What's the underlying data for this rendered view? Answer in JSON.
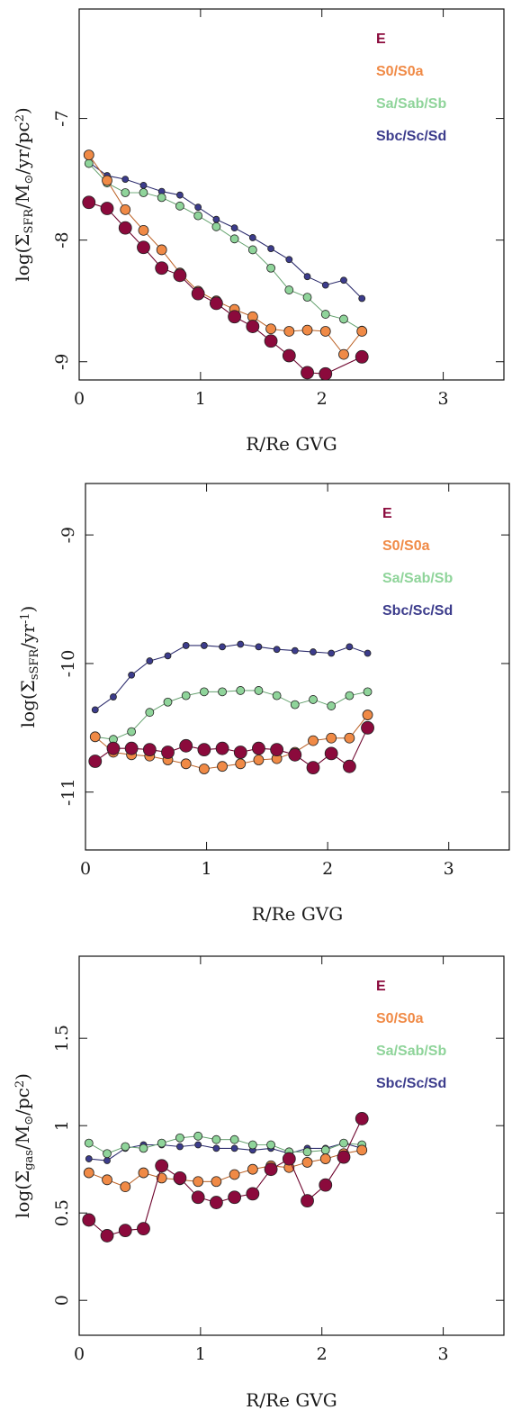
{
  "chart_data": [
    {
      "type": "line",
      "xlabel": "R/Re GVG",
      "ylabel": {
        "main": "log(Σ",
        "sub": "SFR",
        "rest": "/M",
        "sun_sub": "⊙",
        "tail": "/yr/pc",
        "sup": "2",
        "close": ")"
      },
      "xlim": [
        0,
        3.5
      ],
      "ylim": [
        -9.15,
        -6.1
      ],
      "xticks": [
        0,
        1,
        2,
        3
      ],
      "yticks": [
        -9,
        -8,
        -7
      ],
      "tick_labels_x": [
        "0",
        "1",
        "2",
        "3"
      ],
      "tick_labels_y": [
        "-9",
        "-8",
        "-7"
      ],
      "legend": [
        "E",
        "S0/S0a",
        "Sa/Sab/Sb",
        "Sbc/Sc/Sd"
      ],
      "series": [
        {
          "name": "E",
          "color": "#8b0a3c",
          "size": "large",
          "x": [
            0.08,
            0.23,
            0.38,
            0.53,
            0.68,
            0.83,
            0.98,
            1.13,
            1.28,
            1.43,
            1.58,
            1.73,
            1.88,
            2.03,
            2.33
          ],
          "y": [
            -7.69,
            -7.74,
            -7.9,
            -8.06,
            -8.23,
            -8.29,
            -8.44,
            -8.52,
            -8.63,
            -8.71,
            -8.83,
            -8.95,
            -9.09,
            -9.1,
            -8.96
          ]
        },
        {
          "name": "S0/S0a",
          "color": "#f08a46",
          "size": "medium",
          "x": [
            0.08,
            0.23,
            0.38,
            0.53,
            0.68,
            0.83,
            0.98,
            1.13,
            1.28,
            1.43,
            1.58,
            1.73,
            1.88,
            2.03,
            2.18,
            2.33
          ],
          "y": [
            -7.3,
            -7.51,
            -7.75,
            -7.92,
            -8.08,
            -8.27,
            -8.42,
            -8.5,
            -8.57,
            -8.63,
            -8.73,
            -8.75,
            -8.74,
            -8.75,
            -8.94,
            -8.75
          ]
        },
        {
          "name": "Sa/Sab/Sb",
          "color": "#8fd49a",
          "size": "small",
          "x": [
            0.08,
            0.23,
            0.38,
            0.53,
            0.68,
            0.83,
            0.98,
            1.13,
            1.28,
            1.43,
            1.58,
            1.73,
            1.88,
            2.03,
            2.18,
            2.33
          ],
          "y": [
            -7.37,
            -7.53,
            -7.61,
            -7.61,
            -7.65,
            -7.72,
            -7.8,
            -7.89,
            -7.99,
            -8.08,
            -8.23,
            -8.41,
            -8.47,
            -8.61,
            -8.65,
            -8.74
          ]
        },
        {
          "name": "Sbc/Sc/Sd",
          "color": "#3c3c8c",
          "size": "xsmall",
          "x": [
            0.08,
            0.23,
            0.38,
            0.53,
            0.68,
            0.83,
            0.98,
            1.13,
            1.28,
            1.43,
            1.58,
            1.73,
            1.88,
            2.03,
            2.18,
            2.33
          ],
          "y": [
            -7.36,
            -7.47,
            -7.5,
            -7.55,
            -7.6,
            -7.63,
            -7.73,
            -7.83,
            -7.9,
            -7.98,
            -8.07,
            -8.16,
            -8.3,
            -8.37,
            -8.33,
            -8.48
          ]
        }
      ]
    },
    {
      "type": "line",
      "xlabel": "R/Re GVG",
      "ylabel": {
        "main": "log(Σ",
        "sub": "sSFR",
        "rest": "/yr",
        "sup": "-1",
        "close": ")"
      },
      "xlim": [
        0,
        3.5
      ],
      "ylim": [
        -11.45,
        -8.6
      ],
      "xticks": [
        0,
        1,
        2,
        3
      ],
      "yticks": [
        -11,
        -10,
        -9
      ],
      "tick_labels_x": [
        "0",
        "1",
        "2",
        "3"
      ],
      "tick_labels_y": [
        "-11",
        "-10",
        "-9"
      ],
      "legend": [
        "E",
        "S0/S0a",
        "Sa/Sab/Sb",
        "Sbc/Sc/Sd"
      ],
      "series": [
        {
          "name": "E",
          "color": "#8b0a3c",
          "size": "large",
          "x": [
            0.08,
            0.23,
            0.38,
            0.53,
            0.68,
            0.83,
            0.98,
            1.13,
            1.28,
            1.43,
            1.58,
            1.73,
            1.88,
            2.03,
            2.18,
            2.33
          ],
          "y": [
            -10.76,
            -10.66,
            -10.66,
            -10.67,
            -10.69,
            -10.64,
            -10.67,
            -10.66,
            -10.69,
            -10.66,
            -10.67,
            -10.71,
            -10.81,
            -10.7,
            -10.8,
            -10.5
          ]
        },
        {
          "name": "S0/S0a",
          "color": "#f08a46",
          "size": "medium",
          "x": [
            0.08,
            0.23,
            0.38,
            0.53,
            0.68,
            0.83,
            0.98,
            1.13,
            1.28,
            1.43,
            1.58,
            1.73,
            1.88,
            2.03,
            2.18,
            2.33
          ],
          "y": [
            -10.57,
            -10.69,
            -10.71,
            -10.72,
            -10.75,
            -10.78,
            -10.82,
            -10.8,
            -10.78,
            -10.75,
            -10.74,
            -10.69,
            -10.6,
            -10.58,
            -10.58,
            -10.4
          ]
        },
        {
          "name": "Sa/Sab/Sb",
          "color": "#8fd49a",
          "size": "small",
          "x": [
            0.08,
            0.23,
            0.38,
            0.53,
            0.68,
            0.83,
            0.98,
            1.13,
            1.28,
            1.43,
            1.58,
            1.73,
            1.88,
            2.03,
            2.18,
            2.33
          ],
          "y": [
            -10.57,
            -10.59,
            -10.53,
            -10.38,
            -10.3,
            -10.25,
            -10.22,
            -10.22,
            -10.21,
            -10.21,
            -10.25,
            -10.32,
            -10.28,
            -10.33,
            -10.25,
            -10.22
          ]
        },
        {
          "name": "Sbc/Sc/Sd",
          "color": "#3c3c8c",
          "size": "xsmall",
          "x": [
            0.08,
            0.23,
            0.38,
            0.53,
            0.68,
            0.83,
            0.98,
            1.13,
            1.28,
            1.43,
            1.58,
            1.73,
            1.88,
            2.03,
            2.18,
            2.33
          ],
          "y": [
            -10.36,
            -10.26,
            -10.09,
            -9.98,
            -9.94,
            -9.86,
            -9.86,
            -9.87,
            -9.85,
            -9.87,
            -9.89,
            -9.9,
            -9.91,
            -9.92,
            -9.87,
            -9.92
          ]
        }
      ]
    },
    {
      "type": "line",
      "xlabel": "R/Re GVG",
      "ylabel": {
        "main": "log(Σ",
        "sub": "gas",
        "rest": "/M",
        "sun_sub": "⊙",
        "tail": "/pc",
        "sup": "2",
        "close": ")"
      },
      "xlim": [
        0,
        3.5
      ],
      "ylim": [
        -0.2,
        1.97
      ],
      "xticks": [
        0,
        1,
        2,
        3
      ],
      "yticks": [
        0,
        0.5,
        1,
        1.5
      ],
      "tick_labels_x": [
        "0",
        "1",
        "2",
        "3"
      ],
      "tick_labels_y": [
        "0",
        "0.5",
        "1",
        "1.5"
      ],
      "legend": [
        "E",
        "S0/S0a",
        "Sa/Sab/Sb",
        "Sbc/Sc/Sd"
      ],
      "series": [
        {
          "name": "E",
          "color": "#8b0a3c",
          "size": "large",
          "x": [
            0.08,
            0.23,
            0.38,
            0.53,
            0.68,
            0.83,
            0.98,
            1.13,
            1.28,
            1.43,
            1.58,
            1.73,
            1.88,
            2.03,
            2.18,
            2.33
          ],
          "y": [
            0.46,
            0.37,
            0.4,
            0.41,
            0.77,
            0.7,
            0.59,
            0.56,
            0.59,
            0.61,
            0.75,
            0.81,
            0.57,
            0.66,
            0.82,
            1.04
          ]
        },
        {
          "name": "S0/S0a",
          "color": "#f08a46",
          "size": "medium",
          "x": [
            0.08,
            0.23,
            0.38,
            0.53,
            0.68,
            0.83,
            0.98,
            1.13,
            1.28,
            1.43,
            1.58,
            1.73,
            1.88,
            2.03,
            2.18,
            2.33
          ],
          "y": [
            0.73,
            0.69,
            0.65,
            0.73,
            0.7,
            0.69,
            0.68,
            0.68,
            0.72,
            0.75,
            0.77,
            0.76,
            0.79,
            0.81,
            0.84,
            0.86
          ]
        },
        {
          "name": "Sa/Sab/Sb",
          "color": "#8fd49a",
          "size": "small",
          "x": [
            0.08,
            0.23,
            0.38,
            0.53,
            0.68,
            0.83,
            0.98,
            1.13,
            1.28,
            1.43,
            1.58,
            1.73,
            1.88,
            2.03,
            2.18,
            2.33
          ],
          "y": [
            0.9,
            0.84,
            0.88,
            0.87,
            0.9,
            0.93,
            0.94,
            0.92,
            0.92,
            0.89,
            0.89,
            0.85,
            0.85,
            0.86,
            0.9,
            0.89
          ]
        },
        {
          "name": "Sbc/Sc/Sd",
          "color": "#3c3c8c",
          "size": "xsmall",
          "x": [
            0.08,
            0.23,
            0.38,
            0.53,
            0.68,
            0.83,
            0.98,
            1.13,
            1.28,
            1.43,
            1.58,
            1.73,
            1.88,
            2.03,
            2.18,
            2.33
          ],
          "y": [
            0.81,
            0.8,
            0.87,
            0.89,
            0.89,
            0.88,
            0.89,
            0.87,
            0.87,
            0.86,
            0.87,
            0.84,
            0.87,
            0.87,
            0.9,
            0.87
          ]
        }
      ]
    }
  ]
}
